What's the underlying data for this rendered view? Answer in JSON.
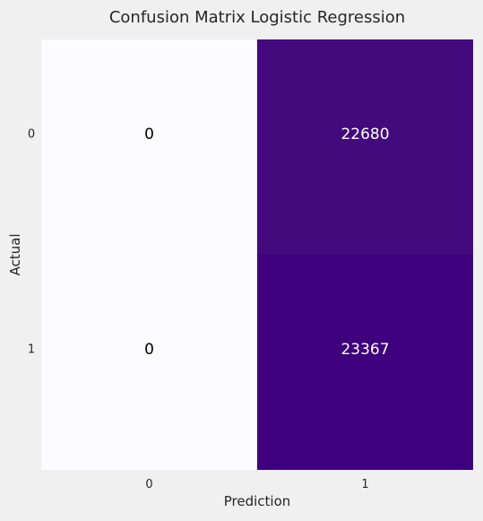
{
  "chart_data": {
    "type": "heatmap",
    "title": "Confusion Matrix Logistic Regression",
    "xlabel": "Prediction",
    "ylabel": "Actual",
    "x_categories": [
      "0",
      "1"
    ],
    "y_categories": [
      "0",
      "1"
    ],
    "values": [
      [
        0,
        22680
      ],
      [
        0,
        23367
      ]
    ],
    "colormap": "Purples",
    "colors": {
      "background": "#f0f0f0",
      "cell_low": "#fcfbfd",
      "cell_mid": "#430a7e",
      "cell_high": "#3f007d",
      "text_dark": "#000000",
      "text_light": "#ffffff",
      "axis_text": "#262626"
    },
    "grid": false,
    "colorbar": false
  }
}
